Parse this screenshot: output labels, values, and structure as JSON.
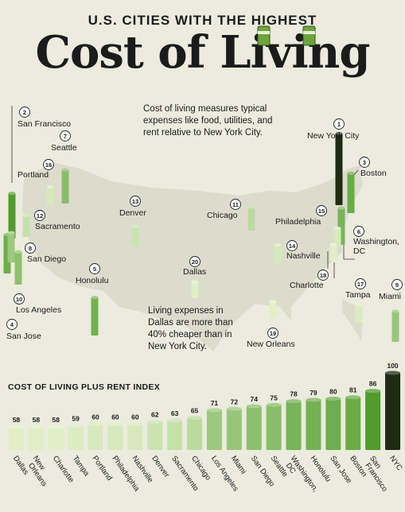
{
  "header": {
    "supertitle": "U.S. CITIES WITH THE HIGHEST",
    "title": "Cost of Living"
  },
  "notes": {
    "definition": [
      "Cost of living measures typical",
      "expenses like food, utilities, and",
      "rent relative to New York City."
    ],
    "dallas": [
      "Living expenses in",
      "Dallas are more than",
      "40% cheaper than in",
      "New York City."
    ]
  },
  "map_cities": [
    {
      "rank": "1",
      "name": "New York City"
    },
    {
      "rank": "2",
      "name": "San Francisco"
    },
    {
      "rank": "3",
      "name": "Boston"
    },
    {
      "rank": "4",
      "name": "San Jose"
    },
    {
      "rank": "5",
      "name": "Honolulu"
    },
    {
      "rank": "6",
      "name": "Washington, DC"
    },
    {
      "rank": "7",
      "name": "Seattle"
    },
    {
      "rank": "8",
      "name": "San Diego"
    },
    {
      "rank": "9",
      "name": "Miami"
    },
    {
      "rank": "10",
      "name": "Los Angeles"
    },
    {
      "rank": "11",
      "name": "Chicago"
    },
    {
      "rank": "12",
      "name": "Sacramento"
    },
    {
      "rank": "13",
      "name": "Denver"
    },
    {
      "rank": "14",
      "name": "Nashville"
    },
    {
      "rank": "15",
      "name": "Philadelphia"
    },
    {
      "rank": "16",
      "name": "Portland"
    },
    {
      "rank": "17",
      "name": "Tampa"
    },
    {
      "rank": "18",
      "name": "Charlotte"
    },
    {
      "rank": "19",
      "name": "New Orleans"
    },
    {
      "rank": "20",
      "name": "Dallas"
    }
  ],
  "chart_data": {
    "type": "bar",
    "title": "COST OF LIVING PLUS RENT INDEX",
    "categories": [
      "Dallas",
      "New Orleans",
      "Charlotte",
      "Tampa",
      "Portland",
      "Philadelphia",
      "Nashville",
      "Denver",
      "Sacramento",
      "Chicago",
      "Los Angeles",
      "Miami",
      "San Diego",
      "Seattle",
      "Washington, DC",
      "Honolulu",
      "San Jose",
      "Boston",
      "San Francisco",
      "NYC"
    ],
    "values": [
      58,
      58,
      58,
      59,
      60,
      60,
      60,
      62,
      63,
      65,
      71,
      72,
      74,
      75,
      78,
      79,
      80,
      81,
      86,
      100
    ],
    "ylim": [
      0,
      100
    ]
  },
  "colors": {
    "background": "#ebebde",
    "map_fill": "#dcdccd",
    "text": "#1b1b1b",
    "nyc_bar": "#1f2b14",
    "bar_light": "#e0efc6",
    "bar_dark": "#4f9c2c"
  }
}
